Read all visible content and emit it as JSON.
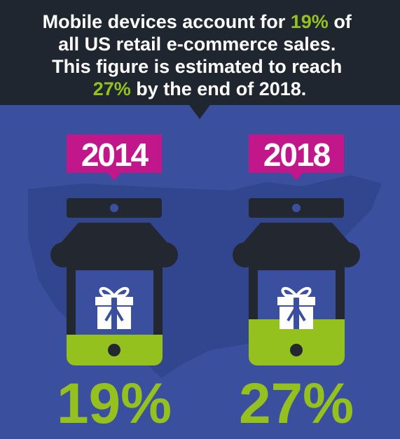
{
  "header": {
    "lines": [
      [
        "Mobile devices account for ",
        "19%",
        " of"
      ],
      [
        "all US retail e-commerce sales."
      ],
      [
        "This figure is estimated to reach"
      ],
      [
        "27%",
        " by the end of 2018."
      ]
    ]
  },
  "panels": [
    {
      "year": "2014",
      "value": "19%"
    },
    {
      "year": "2018",
      "value": "27%"
    }
  ]
}
